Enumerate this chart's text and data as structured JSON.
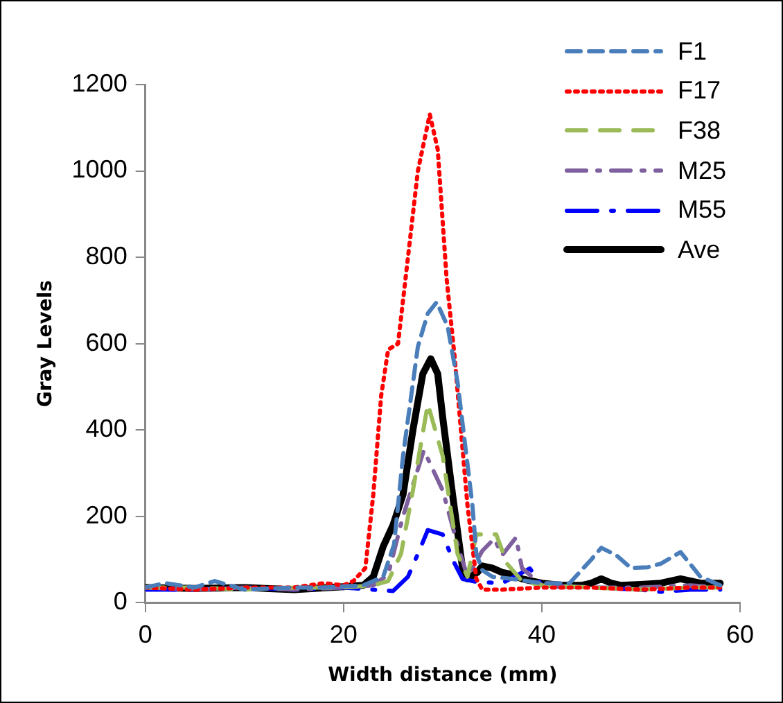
{
  "chart_data": {
    "type": "line",
    "xlabel": "Width distance (mm)",
    "ylabel": "Gray Levels",
    "xlim": [
      0,
      60
    ],
    "xticks": [
      0,
      20,
      40,
      60
    ],
    "ylim": [
      0,
      1200
    ],
    "yticks": [
      0,
      200,
      400,
      600,
      800,
      1000,
      1200
    ],
    "grid": false,
    "legend": "top right",
    "marker": "none",
    "series": [
      {
        "name": "F1",
        "color": "#4a7ebb",
        "line_style": "dashed",
        "x": [
          0,
          2,
          5,
          7,
          10,
          15,
          18,
          22,
          24,
          25.1,
          26,
          27.5,
          28.5,
          29.4,
          30.5,
          31.5,
          33,
          33.4,
          34,
          35,
          37,
          40,
          42.8,
          45,
          46,
          47.5,
          49,
          50.7,
          52,
          54,
          56,
          58
        ],
        "values": [
          35,
          45,
          35,
          50,
          30,
          35,
          35,
          40,
          60,
          135,
          340,
          593,
          670,
          696,
          640,
          511,
          226,
          113,
          75,
          60,
          55,
          45,
          45,
          100,
          127,
          110,
          80,
          82,
          90,
          117,
          60,
          40
        ]
      },
      {
        "name": "F17",
        "color": "#ff0000",
        "line_style": "dotted",
        "x": [
          0,
          5,
          10,
          15,
          18,
          20,
          21,
          22.2,
          23,
          23.8,
          24.5,
          25.5,
          26.5,
          27.5,
          28.7,
          29.5,
          30.4,
          31.2,
          32.5,
          33.4,
          34,
          36,
          40,
          45,
          50,
          55,
          58
        ],
        "values": [
          35,
          30,
          35,
          35,
          45,
          40,
          50,
          80,
          250,
          480,
          586,
          600,
          800,
          1000,
          1131,
          1050,
          750,
          570,
          226,
          55,
          30,
          30,
          35,
          35,
          30,
          35,
          35
        ]
      },
      {
        "name": "F38",
        "color": "#9bbb59",
        "line_style": "dashed",
        "x": [
          0,
          5,
          10,
          15,
          20,
          23,
          24.5,
          25.8,
          27,
          28.5,
          30,
          31.5,
          32.5,
          33.4,
          35.4,
          36.5,
          38,
          40,
          45,
          50,
          55,
          58
        ],
        "values": [
          35,
          35,
          30,
          35,
          35,
          40,
          50,
          113,
          260,
          460,
          340,
          113,
          60,
          158,
          158,
          90,
          50,
          40,
          35,
          30,
          35,
          35
        ]
      },
      {
        "name": "M25",
        "color": "#7f609f",
        "line_style": "dashed",
        "x": [
          0,
          5,
          10,
          15,
          20,
          23,
          24.5,
          26,
          28.1,
          30,
          31.5,
          32.5,
          34,
          35.2,
          36,
          37.4,
          38,
          40,
          45,
          50,
          55,
          58
        ],
        "values": [
          35,
          30,
          35,
          30,
          35,
          40,
          65,
          200,
          353,
          260,
          134,
          60,
          120,
          148,
          110,
          151,
          80,
          40,
          35,
          35,
          40,
          35
        ]
      },
      {
        "name": "M55",
        "color": "#0000ff",
        "line_style": "dashed",
        "x": [
          0,
          5,
          10,
          15,
          20,
          23,
          25,
          26.5,
          27.5,
          28.5,
          30,
          31,
          32,
          33.4,
          36,
          38.8,
          40,
          45,
          50,
          52,
          55,
          58
        ],
        "values": [
          30,
          30,
          35,
          30,
          35,
          30,
          27,
          60,
          113,
          168,
          158,
          100,
          55,
          48,
          45,
          79,
          40,
          35,
          30,
          25,
          30,
          30
        ]
      },
      {
        "name": "Ave",
        "color": "#000000",
        "line_style": "solid",
        "x": [
          0,
          5,
          10,
          15,
          20,
          22,
          23,
          24,
          25,
          26,
          27,
          28,
          28.8,
          29.5,
          30,
          31,
          32,
          32.5,
          33.5,
          34,
          35,
          36,
          37,
          38,
          40,
          42,
          44,
          45,
          46,
          47,
          48,
          50,
          52,
          54,
          56,
          58
        ],
        "values": [
          35,
          33,
          35,
          30,
          37,
          40,
          60,
          130,
          180,
          250,
          400,
          530,
          565,
          530,
          430,
          250,
          80,
          55,
          70,
          85,
          80,
          70,
          65,
          55,
          45,
          40,
          40,
          45,
          55,
          45,
          40,
          42,
          45,
          55,
          45,
          45
        ]
      }
    ]
  }
}
